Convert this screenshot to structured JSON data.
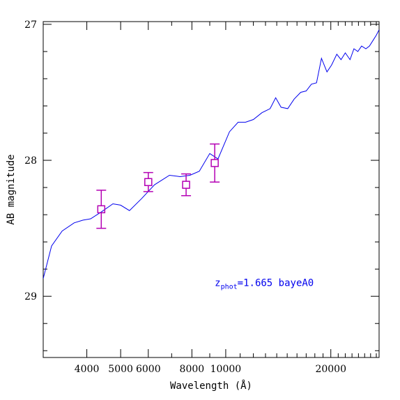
{
  "chart_data": {
    "type": "line",
    "title": "",
    "xlabel": "Wavelength (Å)",
    "ylabel": "AB magnitude",
    "x_scale": "log",
    "xlim": [
      3000,
      27500
    ],
    "ylim": [
      29.45,
      26.98
    ],
    "x_ticks": [
      4000,
      5000,
      6000,
      8000,
      10000,
      20000
    ],
    "x_tick_labels": [
      "4000",
      "5000",
      "6000",
      "8000",
      "10000",
      "20000"
    ],
    "y_ticks": [
      27,
      28,
      29
    ],
    "y_tick_labels": [
      "27",
      "28",
      "29"
    ],
    "grid": false,
    "legend": "none",
    "colors": {
      "model": "#0000ee",
      "photometry": "#b400b4"
    },
    "annotation": {
      "z": "z",
      "sub": "phot",
      "text": "=1.665 bayeA0",
      "color": "#0000ee",
      "x": 9300,
      "y": 28.9
    },
    "series": [
      {
        "kind": "line",
        "x": [
          3000,
          3170,
          3400,
          3680,
          3900,
          4100,
          4400,
          4750,
          5000,
          5300,
          5750,
          6250,
          6900,
          7400,
          7900,
          8400,
          9000,
          9500,
          10250,
          10850,
          11400,
          12000,
          12700,
          13400,
          13900,
          14400,
          15050,
          15700,
          16400,
          17000,
          17600,
          18200,
          18800,
          19500,
          20100,
          20800,
          21400,
          22000,
          22700,
          23300,
          23900,
          24500,
          25200,
          25800,
          26400,
          27000,
          27500
        ],
        "y": [
          28.87,
          28.63,
          28.52,
          28.46,
          28.44,
          28.43,
          28.38,
          28.32,
          28.33,
          28.37,
          28.28,
          28.18,
          28.11,
          28.12,
          28.11,
          28.08,
          27.95,
          27.99,
          27.79,
          27.72,
          27.72,
          27.7,
          27.65,
          27.62,
          27.54,
          27.61,
          27.62,
          27.55,
          27.5,
          27.49,
          27.44,
          27.43,
          27.25,
          27.35,
          27.3,
          27.22,
          27.26,
          27.21,
          27.26,
          27.18,
          27.2,
          27.16,
          27.18,
          27.16,
          27.12,
          27.08,
          27.04
        ]
      },
      {
        "kind": "points",
        "marker": "open-square",
        "x": [
          4400,
          6000,
          7700,
          9300
        ],
        "y": [
          28.36,
          28.16,
          28.18,
          28.02
        ],
        "yerr": [
          0.14,
          0.07,
          0.08,
          0.14
        ]
      }
    ]
  }
}
